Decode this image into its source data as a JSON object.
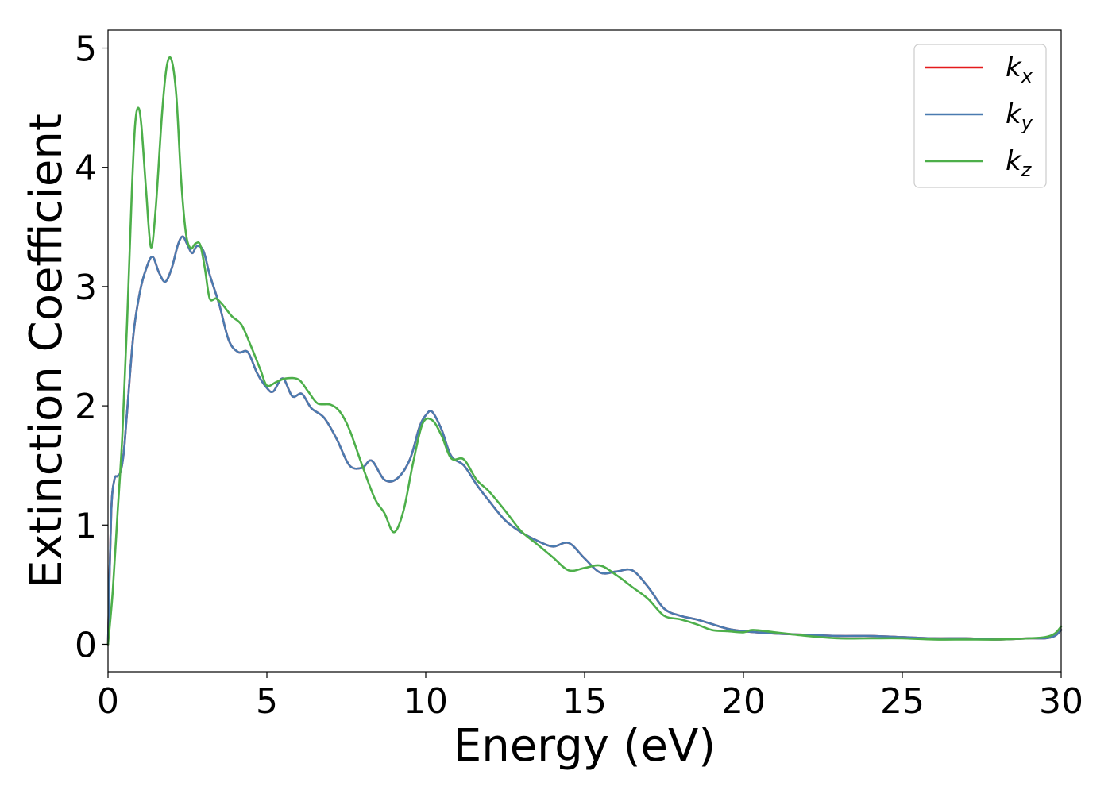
{
  "chart_data": {
    "type": "line",
    "title": "",
    "xlabel": "Energy (eV)",
    "ylabel": "Extinction Coefficient",
    "xlim": [
      0,
      30
    ],
    "ylim": [
      -0.23,
      5.15
    ],
    "xticks": [
      0,
      5,
      10,
      15,
      20,
      25,
      30
    ],
    "yticks": [
      0,
      1,
      2,
      3,
      4,
      5
    ],
    "grid": false,
    "legend_position": "top-right",
    "series": [
      {
        "name": "k",
        "subscript": "x",
        "color": "#e41a1c",
        "x": [
          0,
          0.1,
          0.2,
          0.3,
          0.4,
          0.5,
          0.6,
          0.8,
          1.0,
          1.2,
          1.4,
          1.6,
          1.8,
          2.0,
          2.2,
          2.35,
          2.5,
          2.65,
          2.8,
          3.0,
          3.2,
          3.5,
          3.8,
          4.1,
          4.4,
          4.7,
          5.0,
          5.2,
          5.5,
          5.8,
          6.1,
          6.4,
          6.8,
          7.2,
          7.6,
          8.0,
          8.3,
          8.7,
          9.1,
          9.5,
          9.8,
          10.0,
          10.2,
          10.5,
          10.8,
          11.2,
          11.6,
          12.0,
          12.5,
          13.0,
          13.5,
          14.0,
          14.5,
          15.0,
          15.5,
          16.0,
          16.5,
          17.0,
          17.5,
          18.0,
          18.5,
          19.0,
          19.5,
          20.0,
          21.0,
          22.0,
          23.0,
          24.0,
          25.0,
          26.0,
          27.0,
          28.0,
          29.0,
          29.5,
          29.8,
          30.0
        ],
        "values": [
          0.0,
          1.1,
          1.38,
          1.41,
          1.45,
          1.62,
          1.95,
          2.6,
          2.95,
          3.15,
          3.25,
          3.12,
          3.04,
          3.15,
          3.35,
          3.42,
          3.35,
          3.28,
          3.34,
          3.3,
          3.1,
          2.85,
          2.55,
          2.45,
          2.45,
          2.27,
          2.15,
          2.12,
          2.23,
          2.08,
          2.1,
          1.98,
          1.9,
          1.72,
          1.5,
          1.48,
          1.54,
          1.38,
          1.39,
          1.55,
          1.82,
          1.92,
          1.95,
          1.8,
          1.58,
          1.5,
          1.34,
          1.2,
          1.04,
          0.94,
          0.87,
          0.82,
          0.85,
          0.72,
          0.6,
          0.61,
          0.62,
          0.48,
          0.3,
          0.24,
          0.21,
          0.17,
          0.13,
          0.11,
          0.09,
          0.08,
          0.07,
          0.07,
          0.06,
          0.05,
          0.05,
          0.04,
          0.05,
          0.05,
          0.07,
          0.12
        ]
      },
      {
        "name": "k",
        "subscript": "y",
        "color": "#4a7bb0",
        "x": [
          0,
          0.1,
          0.2,
          0.3,
          0.4,
          0.5,
          0.6,
          0.8,
          1.0,
          1.2,
          1.4,
          1.6,
          1.8,
          2.0,
          2.2,
          2.35,
          2.5,
          2.65,
          2.8,
          3.0,
          3.2,
          3.5,
          3.8,
          4.1,
          4.4,
          4.7,
          5.0,
          5.2,
          5.5,
          5.8,
          6.1,
          6.4,
          6.8,
          7.2,
          7.6,
          8.0,
          8.3,
          8.7,
          9.1,
          9.5,
          9.8,
          10.0,
          10.2,
          10.5,
          10.8,
          11.2,
          11.6,
          12.0,
          12.5,
          13.0,
          13.5,
          14.0,
          14.5,
          15.0,
          15.5,
          16.0,
          16.5,
          17.0,
          17.5,
          18.0,
          18.5,
          19.0,
          19.5,
          20.0,
          21.0,
          22.0,
          23.0,
          24.0,
          25.0,
          26.0,
          27.0,
          28.0,
          29.0,
          29.5,
          29.8,
          30.0
        ],
        "values": [
          0.0,
          1.1,
          1.38,
          1.41,
          1.45,
          1.62,
          1.95,
          2.6,
          2.95,
          3.15,
          3.25,
          3.12,
          3.04,
          3.15,
          3.35,
          3.42,
          3.35,
          3.28,
          3.34,
          3.3,
          3.1,
          2.85,
          2.55,
          2.45,
          2.45,
          2.27,
          2.15,
          2.12,
          2.23,
          2.08,
          2.1,
          1.98,
          1.9,
          1.72,
          1.5,
          1.48,
          1.54,
          1.38,
          1.39,
          1.55,
          1.82,
          1.92,
          1.95,
          1.8,
          1.58,
          1.5,
          1.34,
          1.2,
          1.04,
          0.94,
          0.87,
          0.82,
          0.85,
          0.72,
          0.6,
          0.61,
          0.62,
          0.48,
          0.3,
          0.24,
          0.21,
          0.17,
          0.13,
          0.11,
          0.09,
          0.08,
          0.07,
          0.07,
          0.06,
          0.05,
          0.05,
          0.04,
          0.05,
          0.05,
          0.07,
          0.12
        ]
      },
      {
        "name": "k",
        "subscript": "z",
        "color": "#4daf4a",
        "x": [
          0,
          0.15,
          0.3,
          0.45,
          0.6,
          0.75,
          0.85,
          0.95,
          1.05,
          1.2,
          1.35,
          1.5,
          1.7,
          1.85,
          2.0,
          2.15,
          2.3,
          2.45,
          2.6,
          2.75,
          2.9,
          3.05,
          3.2,
          3.4,
          3.6,
          3.9,
          4.2,
          4.5,
          4.8,
          5.0,
          5.3,
          5.6,
          6.0,
          6.3,
          6.6,
          7.0,
          7.3,
          7.6,
          8.0,
          8.4,
          8.7,
          9.0,
          9.3,
          9.6,
          9.9,
          10.2,
          10.5,
          10.8,
          11.2,
          11.6,
          12.0,
          12.5,
          13.0,
          13.5,
          14.0,
          14.5,
          15.0,
          15.5,
          16.0,
          16.5,
          17.0,
          17.5,
          18.0,
          18.5,
          19.0,
          19.5,
          20.0,
          20.3,
          21.0,
          22.0,
          23.0,
          24.0,
          25.0,
          26.0,
          27.0,
          28.0,
          29.0,
          29.5,
          29.8,
          30.0
        ],
        "values": [
          0.0,
          0.45,
          1.1,
          1.75,
          2.7,
          3.8,
          4.35,
          4.5,
          4.35,
          3.8,
          3.33,
          3.65,
          4.45,
          4.85,
          4.9,
          4.6,
          3.9,
          3.45,
          3.32,
          3.36,
          3.35,
          3.15,
          2.9,
          2.9,
          2.85,
          2.75,
          2.68,
          2.5,
          2.3,
          2.17,
          2.2,
          2.23,
          2.22,
          2.12,
          2.02,
          2.01,
          1.95,
          1.8,
          1.5,
          1.22,
          1.1,
          0.94,
          1.12,
          1.52,
          1.85,
          1.88,
          1.75,
          1.56,
          1.55,
          1.38,
          1.28,
          1.12,
          0.95,
          0.84,
          0.73,
          0.62,
          0.64,
          0.66,
          0.58,
          0.48,
          0.38,
          0.24,
          0.21,
          0.17,
          0.12,
          0.11,
          0.1,
          0.12,
          0.1,
          0.07,
          0.05,
          0.05,
          0.05,
          0.04,
          0.04,
          0.04,
          0.05,
          0.06,
          0.09,
          0.15
        ]
      }
    ]
  }
}
